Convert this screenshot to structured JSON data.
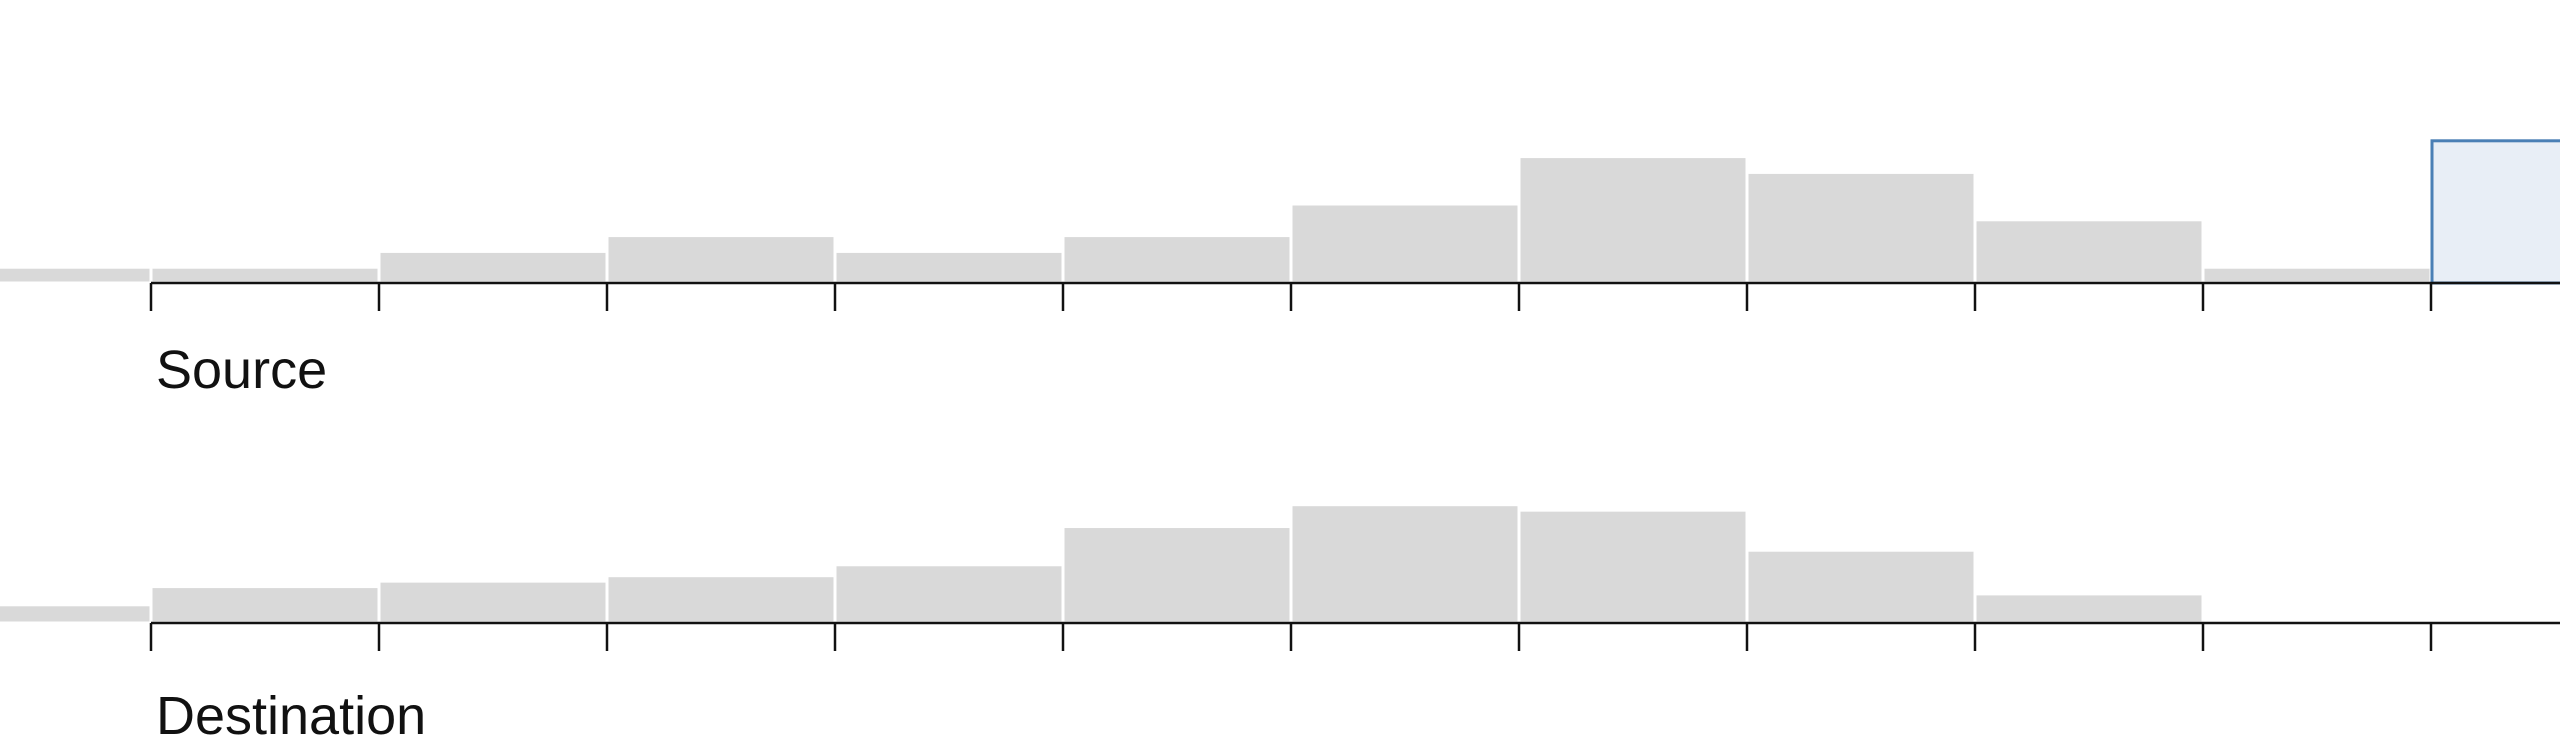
{
  "chart_data": [
    {
      "type": "bar",
      "title": "Source",
      "bins": 11,
      "values": [
        1,
        2,
        3,
        2,
        3,
        5,
        8,
        7,
        4,
        1,
        0
      ],
      "left_stub_value": 1,
      "selected_bin_index": 10,
      "selected_bin_value": 9,
      "ylim": [
        0,
        9.5
      ],
      "colors": {
        "bar": "#d9d9d9",
        "selection_fill": "#e8eef6",
        "selection_stroke": "#4a7fb5"
      }
    },
    {
      "type": "bar",
      "title": "Destination",
      "bins": 11,
      "values": [
        2,
        2.3,
        2.6,
        3.2,
        5.3,
        6.5,
        6.2,
        4,
        1.6,
        0.15,
        0
      ],
      "left_stub_value": 1,
      "ylim": [
        0,
        9.5
      ],
      "colors": {
        "bar": "#d9d9d9"
      }
    }
  ]
}
